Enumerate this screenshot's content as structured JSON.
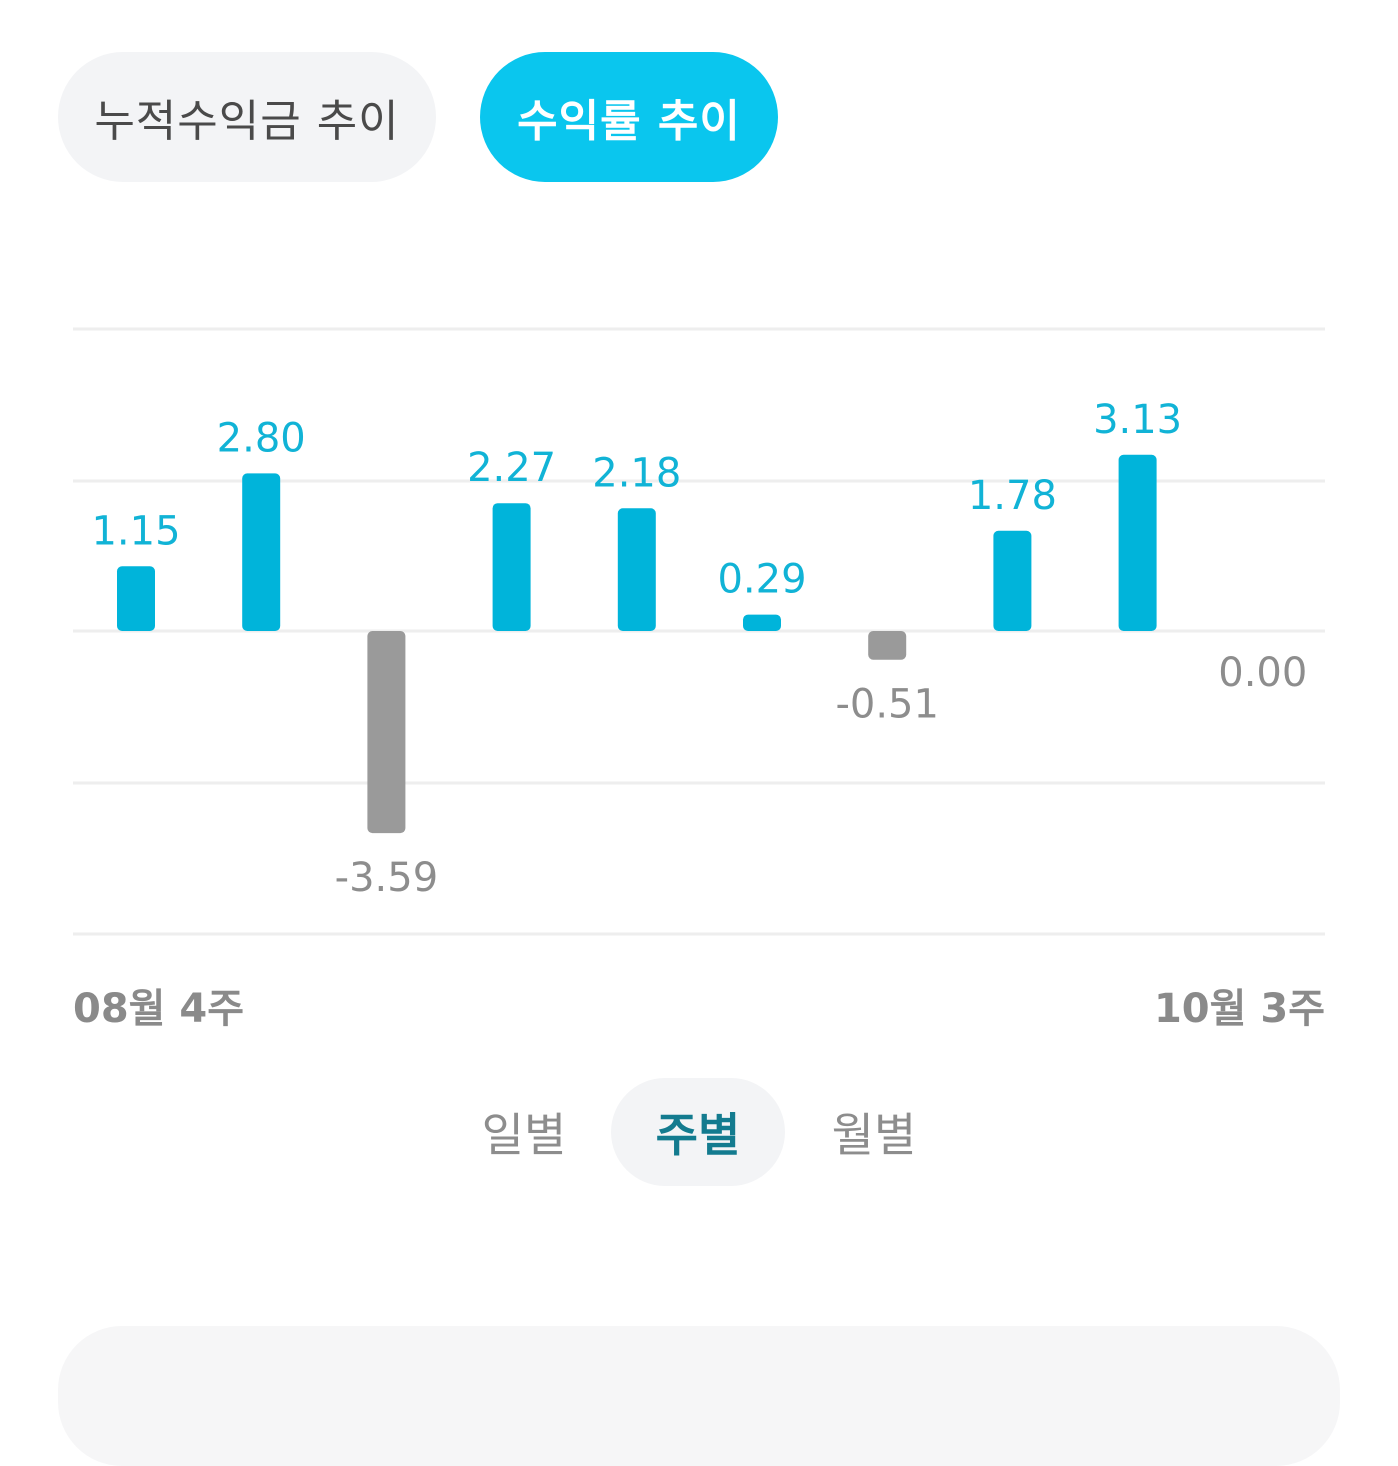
{
  "tabs": {
    "cumulative_label": "누적수익금 추이",
    "return_rate_label": "수익률 추이",
    "active": "return_rate"
  },
  "chart_data": {
    "type": "bar",
    "values": [
      1.15,
      2.8,
      -3.59,
      2.27,
      2.18,
      0.29,
      -0.51,
      1.78,
      3.13,
      0.0
    ],
    "value_labels": [
      "1.15",
      "2.80",
      "-3.59",
      "2.27",
      "2.18",
      "0.29",
      "-0.51",
      "1.78",
      "3.13",
      "0.00"
    ],
    "ylim": [
      -5.4,
      5.4
    ],
    "grid": true,
    "positive_color": "#00b4da",
    "negative_color": "#9a9a9a"
  },
  "range": {
    "start_label": "08월 4주",
    "end_label": "10월 3주"
  },
  "period_selector": {
    "daily_label": "일별",
    "weekly_label": "주별",
    "monthly_label": "월별",
    "active": "weekly"
  },
  "colors": {
    "accent": "#0ac6ee",
    "positive": "#00b4da",
    "negative": "#9a9a9a",
    "selected_period_text": "#137b8f"
  }
}
